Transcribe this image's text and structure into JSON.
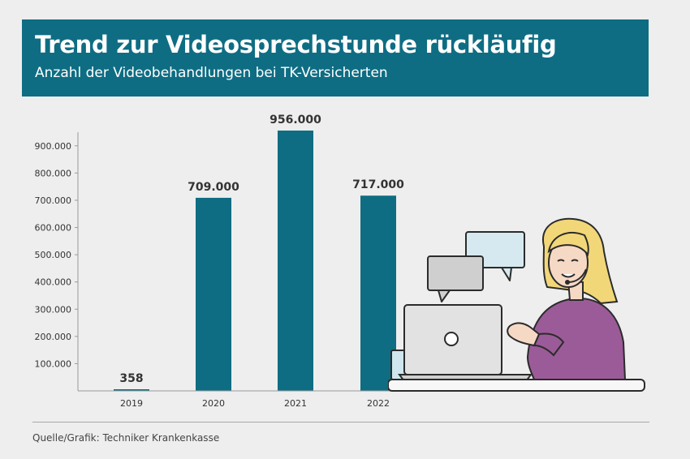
{
  "header": {
    "title": "Trend zur Videosprechstunde rückläufig",
    "subtitle": "Anzahl der Videobehandlungen bei TK-Versicherten"
  },
  "footer": {
    "source": "Quelle/Grafik: Techniker Krankenkasse"
  },
  "colors": {
    "accent": "#0e6d83",
    "background": "#eeeeee"
  },
  "chart_data": {
    "type": "bar",
    "categories": [
      "2019",
      "2020",
      "2021",
      "2022"
    ],
    "values": [
      358,
      709000,
      956000,
      717000
    ],
    "value_labels": [
      "358",
      "709.000",
      "956.000",
      "717.000"
    ],
    "y_ticks": [
      100000,
      200000,
      300000,
      400000,
      500000,
      600000,
      700000,
      800000,
      900000
    ],
    "y_tick_labels": [
      "100.000",
      "200.000",
      "300.000",
      "400.000",
      "500.000",
      "600.000",
      "700.000",
      "800.000",
      "900.000"
    ],
    "ylim": [
      0,
      950000
    ],
    "grid": false,
    "legend": "none",
    "title": "Trend zur Videosprechstunde rückläufig",
    "xlabel": "",
    "ylabel": ""
  }
}
